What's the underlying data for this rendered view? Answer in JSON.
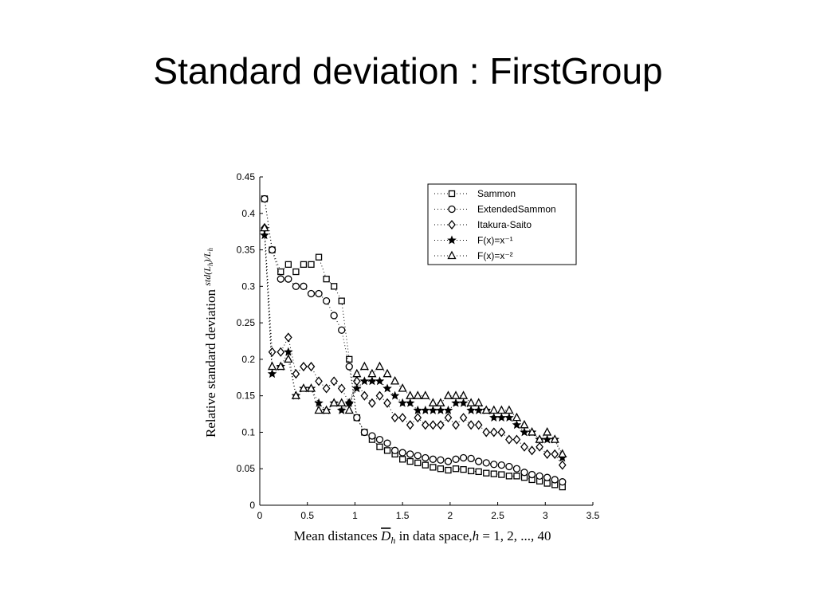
{
  "slide": {
    "title": "Standard deviation : FirstGroup"
  },
  "chart_data": {
    "type": "line",
    "title": "",
    "xlabel": "Mean distances D̅h in data space,h = 1, 2, ..., 40",
    "ylabel": "Relative standard deviation std(Lh)/L̅h",
    "xlim": [
      0,
      3.5
    ],
    "ylim": [
      0,
      0.45
    ],
    "xticks": [
      "0",
      "0.5",
      "1",
      "1.5",
      "2",
      "2.5",
      "3",
      "3.5"
    ],
    "yticks": [
      "0",
      "0.05",
      "0.1",
      "0.15",
      "0.2",
      "0.25",
      "0.3",
      "0.35",
      "0.4",
      "0.45"
    ],
    "legend_position": "top-right",
    "line_style": "dotted",
    "series": [
      {
        "name": "Sammon",
        "marker": "square",
        "x": [
          0.05,
          0.13,
          0.22,
          0.3,
          0.38,
          0.46,
          0.54,
          0.62,
          0.7,
          0.78,
          0.86,
          0.94,
          1.02,
          1.1,
          1.18,
          1.26,
          1.34,
          1.42,
          1.5,
          1.58,
          1.66,
          1.74,
          1.82,
          1.9,
          1.98,
          2.06,
          2.14,
          2.22,
          2.3,
          2.38,
          2.46,
          2.54,
          2.62,
          2.7,
          2.78,
          2.86,
          2.94,
          3.02,
          3.1,
          3.18
        ],
        "y": [
          0.42,
          0.35,
          0.32,
          0.33,
          0.32,
          0.33,
          0.33,
          0.34,
          0.31,
          0.3,
          0.28,
          0.2,
          0.12,
          0.1,
          0.09,
          0.08,
          0.075,
          0.07,
          0.063,
          0.06,
          0.058,
          0.055,
          0.052,
          0.05,
          0.048,
          0.05,
          0.049,
          0.047,
          0.046,
          0.044,
          0.043,
          0.042,
          0.04,
          0.04,
          0.038,
          0.035,
          0.033,
          0.03,
          0.028,
          0.025
        ]
      },
      {
        "name": "ExtendedSammon",
        "marker": "circle",
        "x": [
          0.05,
          0.13,
          0.22,
          0.3,
          0.38,
          0.46,
          0.54,
          0.62,
          0.7,
          0.78,
          0.86,
          0.94,
          1.02,
          1.1,
          1.18,
          1.26,
          1.34,
          1.42,
          1.5,
          1.58,
          1.66,
          1.74,
          1.82,
          1.9,
          1.98,
          2.06,
          2.14,
          2.22,
          2.3,
          2.38,
          2.46,
          2.54,
          2.62,
          2.7,
          2.78,
          2.86,
          2.94,
          3.02,
          3.1,
          3.18
        ],
        "y": [
          0.42,
          0.35,
          0.31,
          0.31,
          0.3,
          0.3,
          0.29,
          0.29,
          0.28,
          0.26,
          0.24,
          0.19,
          0.12,
          0.1,
          0.095,
          0.09,
          0.085,
          0.075,
          0.072,
          0.07,
          0.068,
          0.065,
          0.063,
          0.062,
          0.06,
          0.063,
          0.065,
          0.064,
          0.06,
          0.058,
          0.056,
          0.055,
          0.053,
          0.05,
          0.045,
          0.042,
          0.04,
          0.038,
          0.035,
          0.032
        ]
      },
      {
        "name": "Itakura-Saito",
        "marker": "diamond",
        "x": [
          0.05,
          0.13,
          0.22,
          0.3,
          0.38,
          0.46,
          0.54,
          0.62,
          0.7,
          0.78,
          0.86,
          0.94,
          1.02,
          1.1,
          1.18,
          1.26,
          1.34,
          1.42,
          1.5,
          1.58,
          1.66,
          1.74,
          1.82,
          1.9,
          1.98,
          2.06,
          2.14,
          2.22,
          2.3,
          2.38,
          2.46,
          2.54,
          2.62,
          2.7,
          2.78,
          2.86,
          2.94,
          3.02,
          3.1,
          3.18
        ],
        "y": [
          0.38,
          0.21,
          0.21,
          0.23,
          0.18,
          0.19,
          0.19,
          0.17,
          0.16,
          0.17,
          0.16,
          0.14,
          0.17,
          0.15,
          0.14,
          0.15,
          0.14,
          0.12,
          0.12,
          0.11,
          0.12,
          0.11,
          0.11,
          0.11,
          0.12,
          0.11,
          0.12,
          0.11,
          0.11,
          0.1,
          0.1,
          0.1,
          0.09,
          0.09,
          0.08,
          0.075,
          0.08,
          0.07,
          0.07,
          0.055
        ]
      },
      {
        "name": "F(x)=x⁻¹",
        "marker": "star",
        "x": [
          0.05,
          0.13,
          0.22,
          0.3,
          0.38,
          0.46,
          0.54,
          0.62,
          0.7,
          0.78,
          0.86,
          0.94,
          1.02,
          1.1,
          1.18,
          1.26,
          1.34,
          1.42,
          1.5,
          1.58,
          1.66,
          1.74,
          1.82,
          1.9,
          1.98,
          2.06,
          2.14,
          2.22,
          2.3,
          2.38,
          2.46,
          2.54,
          2.62,
          2.7,
          2.78,
          2.86,
          2.94,
          3.02,
          3.1,
          3.18
        ],
        "y": [
          0.37,
          0.18,
          0.19,
          0.21,
          0.15,
          0.16,
          0.16,
          0.14,
          0.13,
          0.14,
          0.13,
          0.14,
          0.16,
          0.17,
          0.17,
          0.17,
          0.16,
          0.15,
          0.14,
          0.14,
          0.13,
          0.13,
          0.13,
          0.13,
          0.13,
          0.14,
          0.14,
          0.13,
          0.13,
          0.13,
          0.12,
          0.12,
          0.12,
          0.11,
          0.1,
          0.1,
          0.09,
          0.09,
          0.09,
          0.065
        ]
      },
      {
        "name": "F(x)=x⁻²",
        "marker": "triangle",
        "x": [
          0.05,
          0.13,
          0.22,
          0.3,
          0.38,
          0.46,
          0.54,
          0.62,
          0.7,
          0.78,
          0.86,
          0.94,
          1.02,
          1.1,
          1.18,
          1.26,
          1.34,
          1.42,
          1.5,
          1.58,
          1.66,
          1.74,
          1.82,
          1.9,
          1.98,
          2.06,
          2.14,
          2.22,
          2.3,
          2.38,
          2.46,
          2.54,
          2.62,
          2.7,
          2.78,
          2.86,
          2.94,
          3.02,
          3.1,
          3.18
        ],
        "y": [
          0.38,
          0.19,
          0.19,
          0.2,
          0.15,
          0.16,
          0.16,
          0.13,
          0.13,
          0.14,
          0.14,
          0.13,
          0.18,
          0.19,
          0.18,
          0.19,
          0.18,
          0.17,
          0.16,
          0.15,
          0.15,
          0.15,
          0.14,
          0.14,
          0.15,
          0.15,
          0.15,
          0.14,
          0.14,
          0.13,
          0.13,
          0.13,
          0.13,
          0.12,
          0.11,
          0.1,
          0.09,
          0.1,
          0.09,
          0.07
        ]
      }
    ]
  }
}
